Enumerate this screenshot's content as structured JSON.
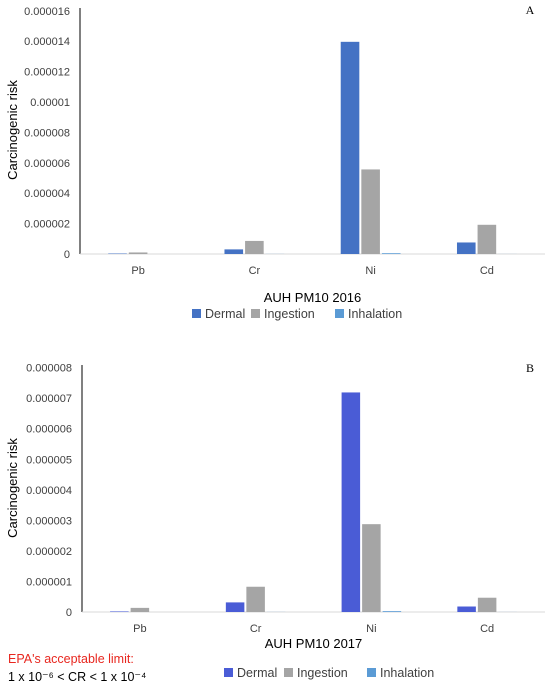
{
  "chart_data": [
    {
      "type": "bar",
      "panel_label": "A",
      "title": "",
      "xlabel": "AUH PM10 2016",
      "ylabel": "Carcinogenic risk",
      "categories": [
        "Pb",
        "Cr",
        "Ni",
        "Cd"
      ],
      "ylim": [
        0,
        1.6e-05
      ],
      "yticks": [
        "0",
        "0.000002",
        "0.000004",
        "0.000006",
        "0.000008",
        "0.00001",
        "0.000012",
        "0.000014",
        "0.000016"
      ],
      "legend_position": "bottom",
      "series": [
        {
          "name": "Dermal",
          "color": "#4472c4",
          "values": [
            3e-08,
            3e-07,
            1.38e-05,
            7.5e-07
          ]
        },
        {
          "name": "Ingestion",
          "color": "#a5a5a5",
          "values": [
            1e-07,
            8.5e-07,
            5.5e-06,
            1.9e-06
          ]
        },
        {
          "name": "Inhalation",
          "color": "#5b9bd5",
          "values": [
            3e-10,
            5e-09,
            5e-08,
            3e-09
          ]
        }
      ]
    },
    {
      "type": "bar",
      "panel_label": "B",
      "title": "",
      "xlabel": "AUH PM10 2017",
      "ylabel": "Carcinogenic risk",
      "categories": [
        "Pb",
        "Cr",
        "Ni",
        "Cd"
      ],
      "ylim": [
        0,
        9e-06
      ],
      "yticks": [
        "0",
        "0.000001",
        "0.000002",
        "0.000003",
        "0.000004",
        "0.000005",
        "0.000006",
        "0.000007",
        "0.000008"
      ],
      "legend_position": "bottom",
      "series": [
        {
          "name": "Dermal",
          "color": "#4a5cd6",
          "values": [
            2e-08,
            3.5e-07,
            8e-06,
            2e-07
          ]
        },
        {
          "name": "Ingestion",
          "color": "#a5a5a5",
          "values": [
            1.5e-07,
            9.2e-07,
            3.2e-06,
            5.2e-07
          ]
        },
        {
          "name": "Inhalation",
          "color": "#5b9bd5",
          "values": [
            2e-10,
            3e-09,
            3e-08,
            2e-09
          ]
        }
      ]
    }
  ],
  "note": {
    "limit_label": "EPA's acceptable limit:",
    "limit_range": "1 x 10⁻⁶ < CR < 1 x 10⁻⁴",
    "limit_color": "#e8271f"
  }
}
